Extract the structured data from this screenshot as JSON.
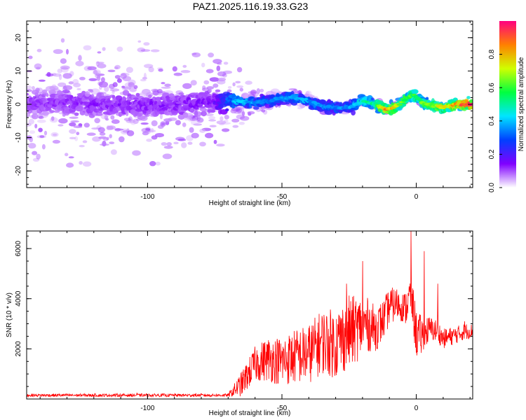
{
  "title": "PAZ1.2025.116.19.33.G23",
  "colors": {
    "snr_line": "#ff0000",
    "axis": "#000000",
    "colormap": [
      "#ffffff",
      "#8000ff",
      "#0040ff",
      "#00e5ff",
      "#00ff40",
      "#d0ff00",
      "#ff8000",
      "#ff0080"
    ]
  },
  "chart_data": [
    {
      "type": "heatmap",
      "title": "PAZ1.2025.116.19.33.G23",
      "xlabel": "Height of straight line (km)",
      "ylabel": "Frequency (Hz)",
      "xlim": [
        -145,
        21
      ],
      "ylim": [
        -25,
        25
      ],
      "x_ticks": [
        -100,
        -50,
        0
      ],
      "y_ticks": [
        -20,
        -10,
        0,
        10,
        20
      ],
      "colorbar": {
        "label": "Normalized spectral amplitude",
        "range": [
          0,
          1
        ],
        "ticks": [
          0.0,
          0.2,
          0.4,
          0.6,
          0.8
        ]
      },
      "ridge_center_hz": [
        [
          -145,
          0.5
        ],
        [
          -130,
          0.5
        ],
        [
          -115,
          0.0
        ],
        [
          -100,
          -0.5
        ],
        [
          -90,
          0.0
        ],
        [
          -80,
          0.5
        ],
        [
          -68,
          1.0
        ],
        [
          -60,
          0.5
        ],
        [
          -55,
          1.0
        ],
        [
          -50,
          2.0
        ],
        [
          -45,
          2.0
        ],
        [
          -40,
          1.0
        ],
        [
          -35,
          -0.5
        ],
        [
          -30,
          -1.0
        ],
        [
          -25,
          -1.0
        ],
        [
          -22,
          0.0
        ],
        [
          -20,
          1.0
        ],
        [
          -15,
          0.0
        ],
        [
          -11,
          -1.5
        ],
        [
          -7,
          -0.5
        ],
        [
          -4,
          1.5
        ],
        [
          -1,
          3.0
        ],
        [
          1,
          1.5
        ],
        [
          3,
          0.0
        ],
        [
          5,
          0.0
        ],
        [
          10,
          -1.0
        ],
        [
          15,
          0.0
        ],
        [
          21,
          0.0
        ]
      ],
      "ridge_peak_amplitude": [
        [
          -145,
          0.12
        ],
        [
          -100,
          0.14
        ],
        [
          -75,
          0.15
        ],
        [
          -67,
          0.42
        ],
        [
          -55,
          0.32
        ],
        [
          -45,
          0.4
        ],
        [
          -35,
          0.34
        ],
        [
          -25,
          0.36
        ],
        [
          -15,
          0.55
        ],
        [
          -11,
          0.82
        ],
        [
          -5,
          0.62
        ],
        [
          0,
          0.58
        ],
        [
          5,
          0.65
        ],
        [
          10,
          0.72
        ],
        [
          15,
          0.8
        ],
        [
          21,
          0.98
        ]
      ],
      "scatter_extent_hz": [
        [
          -145,
          25
        ],
        [
          -100,
          25
        ],
        [
          -80,
          22
        ],
        [
          -68,
          15
        ],
        [
          -60,
          4
        ],
        [
          -40,
          3
        ],
        [
          -20,
          2
        ],
        [
          0,
          1.5
        ],
        [
          21,
          1
        ]
      ]
    },
    {
      "type": "line",
      "xlabel": "Height of straight line (km)",
      "ylabel": "SNR (10 * v/v)",
      "xlim": [
        -145,
        21
      ],
      "ylim": [
        0,
        6700
      ],
      "x_ticks": [
        -100,
        -50,
        0
      ],
      "y_ticks": [
        2000,
        4000,
        6000
      ],
      "envelope": [
        [
          -145,
          150
        ],
        [
          -70,
          150
        ],
        [
          -65,
          600
        ],
        [
          -60,
          1400
        ],
        [
          -55,
          1600
        ],
        [
          -50,
          1500
        ],
        [
          -45,
          1700
        ],
        [
          -40,
          1800
        ],
        [
          -35,
          2300
        ],
        [
          -30,
          2200
        ],
        [
          -26,
          2600
        ],
        [
          -22,
          2800
        ],
        [
          -19,
          3000
        ],
        [
          -15,
          2800
        ],
        [
          -12,
          3200
        ],
        [
          -10,
          3700
        ],
        [
          -7,
          3800
        ],
        [
          -4,
          3600
        ],
        [
          -2,
          4200
        ],
        [
          0,
          2600
        ],
        [
          2,
          2500
        ],
        [
          5,
          2800
        ],
        [
          8,
          2700
        ],
        [
          10,
          2400
        ],
        [
          13,
          2500
        ],
        [
          16,
          2600
        ],
        [
          18,
          2700
        ],
        [
          21,
          2700
        ]
      ],
      "noise_amplitude": [
        [
          -145,
          60
        ],
        [
          -70,
          60
        ],
        [
          -65,
          500
        ],
        [
          -55,
          900
        ],
        [
          -45,
          1100
        ],
        [
          -35,
          1300
        ],
        [
          -25,
          1500
        ],
        [
          -15,
          900
        ],
        [
          -5,
          600
        ],
        [
          0,
          1000
        ],
        [
          5,
          500
        ],
        [
          10,
          400
        ],
        [
          21,
          300
        ]
      ],
      "spikes": [
        [
          -104,
          250
        ],
        [
          -26,
          4600
        ],
        [
          -20,
          5500
        ],
        [
          -11,
          4000
        ],
        [
          -2,
          6700
        ],
        [
          3,
          5900
        ],
        [
          8,
          4600
        ],
        [
          18,
          3100
        ]
      ]
    }
  ]
}
